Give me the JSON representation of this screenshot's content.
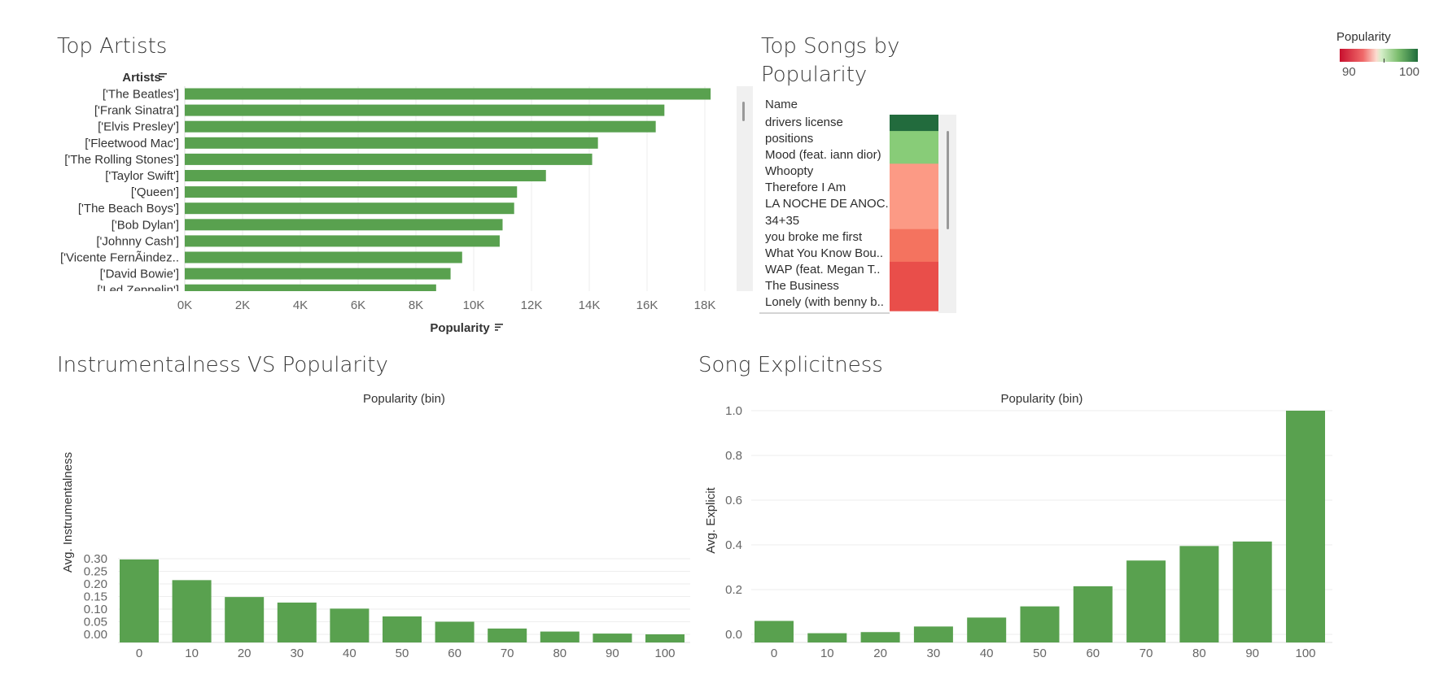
{
  "titles": {
    "top_artists": "Top Artists",
    "top_songs": "Top Songs by Popularity",
    "instrumentalness": "Instrumentalness VS Popularity",
    "explicitness": "Song Explicitness"
  },
  "legend": {
    "title": "Popularity",
    "min": "90",
    "max": "100",
    "colors": [
      "#c8102e",
      "#f6f6f6",
      "#1e6b3a"
    ]
  },
  "colors": {
    "bar": "#59a14f",
    "grid": "#eeeeee"
  },
  "top_songs": {
    "header": "Name",
    "songs": [
      {
        "name": "drivers license",
        "popularity": 100
      },
      {
        "name": "positions",
        "popularity": 97
      },
      {
        "name": "Mood (feat. iann dior)",
        "popularity": 97
      },
      {
        "name": "Whoopty",
        "popularity": 93
      },
      {
        "name": "Therefore I Am",
        "popularity": 93
      },
      {
        "name": "LA NOCHE DE ANOC..",
        "popularity": 93
      },
      {
        "name": "34+35",
        "popularity": 93
      },
      {
        "name": "you broke me first",
        "popularity": 92
      },
      {
        "name": "What You Know Bou..",
        "popularity": 92
      },
      {
        "name": "WAP (feat. Megan T..",
        "popularity": 91
      },
      {
        "name": "The Business",
        "popularity": 91
      },
      {
        "name": "Lonely (with benny b..",
        "popularity": 91
      }
    ]
  },
  "chart_data": [
    {
      "type": "bar",
      "orientation": "horizontal",
      "title": "Top Artists",
      "ylabel": "Artists",
      "xlabel": "Popularity",
      "categories": [
        "['The Beatles']",
        "['Frank Sinatra']",
        "['Elvis Presley']",
        "['Fleetwood Mac']",
        "['The Rolling Stones']",
        "['Taylor Swift']",
        "['Queen']",
        "['The Beach Boys']",
        "['Bob Dylan']",
        "['Johnny Cash']",
        "['Vicente FernÃindez..",
        "['David Bowie']",
        "['Led Zeppelin']"
      ],
      "values": [
        18200,
        16600,
        16300,
        14300,
        14100,
        12500,
        11500,
        11400,
        11000,
        10900,
        9600,
        9200,
        8700
      ],
      "xlim": [
        0,
        19000
      ],
      "xticks": [
        "0K",
        "2K",
        "4K",
        "6K",
        "8K",
        "10K",
        "12K",
        "14K",
        "16K",
        "18K"
      ],
      "grid": true
    },
    {
      "type": "bar",
      "title": "Instrumentalness VS Popularity",
      "xlabel": "Popularity (bin)",
      "ylabel": "Avg. Instrumentalness",
      "categories": [
        "0",
        "10",
        "20",
        "30",
        "40",
        "50",
        "60",
        "70",
        "80",
        "90",
        "100"
      ],
      "values": [
        0.297,
        0.215,
        0.148,
        0.126,
        0.102,
        0.071,
        0.05,
        0.023,
        0.011,
        0.003,
        0
      ],
      "ylim": [
        -0.01,
        0.31
      ],
      "yticks": [
        "0.30",
        "0.25",
        "0.20",
        "0.15",
        "0.10",
        "0.05",
        "0.00"
      ],
      "grid": true
    },
    {
      "type": "bar",
      "title": "Song Explicitness",
      "xlabel": "Popularity (bin)",
      "ylabel": "Avg. Explicit",
      "categories": [
        "0",
        "10",
        "20",
        "30",
        "40",
        "50",
        "60",
        "70",
        "80",
        "90",
        "100"
      ],
      "values": [
        0.06,
        0.005,
        0.01,
        0.035,
        0.075,
        0.125,
        0.215,
        0.33,
        0.395,
        0.415,
        1.0
      ],
      "ylim": [
        -0.03,
        1.02
      ],
      "yticks": [
        "1.0",
        "0.8",
        "0.6",
        "0.4",
        "0.2",
        "0.0"
      ],
      "grid": true
    }
  ]
}
